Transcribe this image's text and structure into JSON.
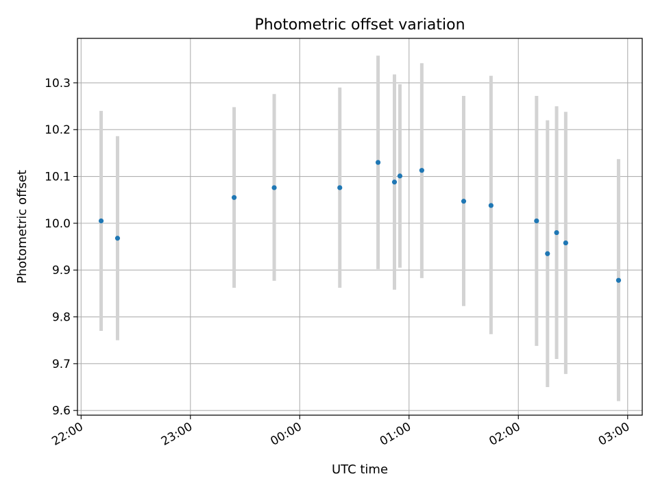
{
  "chart_data": {
    "type": "scatter",
    "title": "Photometric offset variation",
    "xlabel": "UTC time",
    "ylabel": "Photometric offset",
    "grid": true,
    "xlim": [
      "21:58",
      "03:08"
    ],
    "ylim": [
      9.59,
      10.395
    ],
    "x_ticks": [
      "22:00",
      "23:00",
      "00:00",
      "01:00",
      "02:00",
      "03:00"
    ],
    "y_ticks": [
      "9.6",
      "9.7",
      "9.8",
      "9.9",
      "10.0",
      "10.1",
      "10.2",
      "10.3"
    ],
    "x_tick_values": [
      "22:00",
      "23:00",
      "00:00",
      "01:00",
      "02:00",
      "03:00"
    ],
    "y_tick_values": [
      9.6,
      9.7,
      9.8,
      9.9,
      10.0,
      10.1,
      10.2,
      10.3
    ],
    "series": [
      {
        "x": [
          "22:11",
          "22:20",
          "23:24",
          "23:46",
          "00:22",
          "00:43",
          "00:52",
          "00:55",
          "01:07",
          "01:30",
          "01:45",
          "02:10",
          "02:16",
          "02:21",
          "02:26",
          "02:55"
        ],
        "y": [
          10.005,
          9.968,
          10.055,
          10.076,
          10.076,
          10.13,
          10.088,
          10.101,
          10.113,
          10.047,
          10.038,
          10.005,
          9.935,
          9.98,
          9.958,
          9.878
        ],
        "y_low": [
          9.77,
          9.75,
          9.862,
          9.877,
          9.862,
          9.902,
          9.858,
          9.905,
          9.883,
          9.823,
          9.763,
          9.738,
          9.65,
          9.71,
          9.678,
          9.62
        ],
        "y_high": [
          10.24,
          10.186,
          10.248,
          10.276,
          10.29,
          10.358,
          10.318,
          10.297,
          10.342,
          10.272,
          10.315,
          10.272,
          10.22,
          10.25,
          10.238,
          10.137
        ]
      }
    ],
    "colors": {
      "marker": "#1f77b4",
      "errorbar": "#d3d3d3",
      "grid": "#b0b0b0",
      "axes": "#000000"
    }
  }
}
